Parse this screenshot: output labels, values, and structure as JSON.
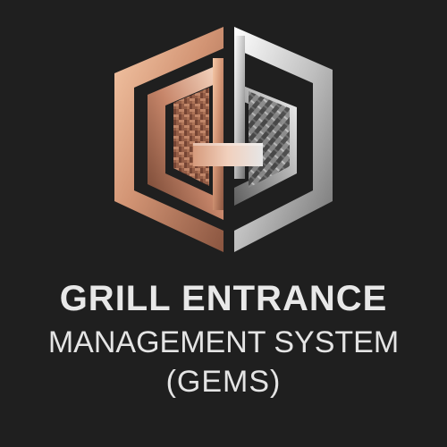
{
  "brand": {
    "title_line1": "GRILL ENTRANCE",
    "title_line2": "MANAGEMENT SYSTEM",
    "title_line3": "(GEMS)"
  },
  "logo": {
    "icon": "gems-hexagon-logo-icon",
    "colors": {
      "background": "#1f1f1f",
      "copper_light": "#f0b896",
      "copper_mid": "#c9876a",
      "copper_dark": "#7a4a35",
      "silver_light": "#f2f2f2",
      "silver_mid": "#bdbdbd",
      "silver_dark": "#6e6e6e",
      "text": "#e6e6e6"
    }
  }
}
